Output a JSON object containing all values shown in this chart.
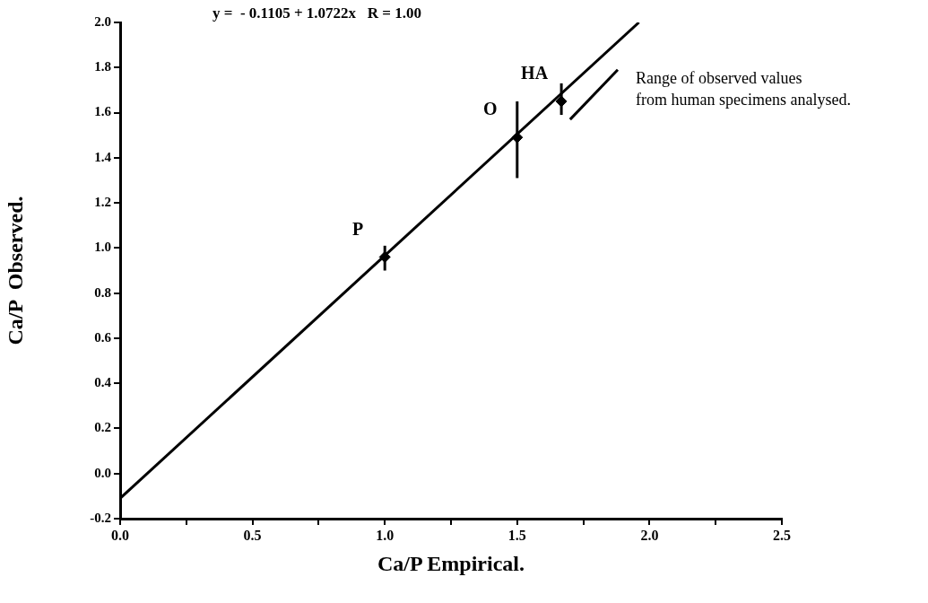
{
  "chart_data": {
    "type": "scatter",
    "xlabel": "Ca/P Empirical.",
    "ylabel": "Ca/P  Observed.",
    "annotations": [
      "y =  - 0.1105 + 1.0722x   R = 1.00",
      {
        "text": "P",
        "x": 1.0,
        "y": 0.96
      },
      {
        "text": "O",
        "x": 1.5,
        "y": 1.49
      },
      {
        "text": "HA",
        "x": 1.667,
        "y": 1.65
      },
      {
        "text": "Range of observed values\nfrom human specimens analysed.",
        "x": 1.88,
        "y": 1.79
      }
    ],
    "series": [
      {
        "color": "#000000",
        "marker": "diamond",
        "x": [
          1.0,
          1.5,
          1.667
        ],
        "values": [
          0.96,
          1.49,
          1.65
        ],
        "errors": [
          [
            0.9,
            1.01
          ],
          [
            1.31,
            1.65
          ],
          [
            1.59,
            1.73
          ]
        ]
      },
      {
        "type": "line",
        "color": "#000000",
        "x": [
          0,
          1.96
        ],
        "values": [
          -0.11,
          2.0
        ]
      },
      {
        "type": "line",
        "color": "#000000",
        "x": [
          1.7,
          1.88
        ],
        "values": [
          1.57,
          1.79
        ]
      }
    ],
    "xlim": [
      0,
      2.5
    ],
    "ylim": [
      -0.2,
      2.0
    ],
    "xticks": [
      {
        "value": 0,
        "label": "0.0"
      },
      {
        "value": 0.25,
        "label": null
      },
      {
        "value": 0.5,
        "label": "0.5"
      },
      {
        "value": 0.75,
        "label": null
      },
      {
        "value": 1,
        "label": "1.0"
      },
      {
        "value": 1.25,
        "label": null
      },
      {
        "value": 1.5,
        "label": "1.5"
      },
      {
        "value": 1.75,
        "label": null
      },
      {
        "value": 2,
        "label": "2.0"
      },
      {
        "value": 2.25,
        "label": null
      },
      {
        "value": 2.5,
        "label": "2.5"
      }
    ],
    "yticks": [
      {
        "value": -0.2,
        "label": "-0.2"
      },
      {
        "value": 0,
        "label": "0.0"
      },
      {
        "value": 0.2,
        "label": "0.2"
      },
      {
        "value": 0.4,
        "label": "0.4"
      },
      {
        "value": 0.6,
        "label": "0.6"
      },
      {
        "value": 0.8,
        "label": "0.8"
      },
      {
        "value": 1,
        "label": "1.0"
      },
      {
        "value": 1.2,
        "label": "1.2"
      },
      {
        "value": 1.4,
        "label": "1.4"
      },
      {
        "value": 1.6,
        "label": "1.6"
      },
      {
        "value": 1.8,
        "label": "1.8"
      },
      {
        "value": 2,
        "label": "2.0"
      }
    ],
    "grid": false,
    "legend": false
  }
}
